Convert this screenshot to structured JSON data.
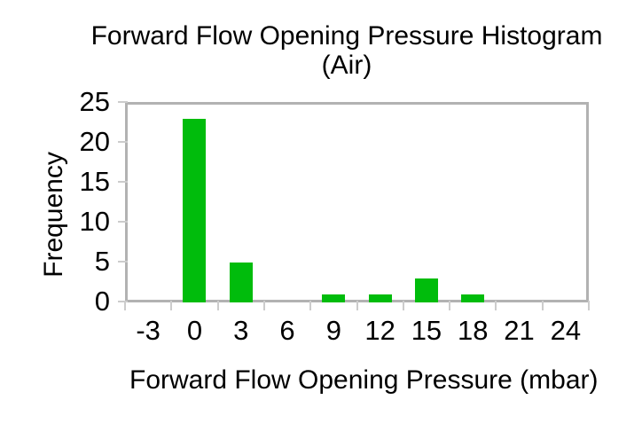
{
  "chart_data": {
    "type": "bar",
    "title": "Forward Flow Opening Pressure Histogram",
    "subtitle": "(Air)",
    "xlabel": "Forward Flow Opening Pressure (mbar)",
    "ylabel": "Frequency",
    "categories": [
      "-3",
      "0",
      "3",
      "6",
      "9",
      "12",
      "15",
      "18",
      "21",
      "24"
    ],
    "values": [
      0,
      23,
      5,
      0,
      1,
      1,
      3,
      1,
      0,
      0
    ],
    "yticks": [
      0,
      5,
      10,
      15,
      20,
      25
    ],
    "ylim": [
      0,
      25
    ],
    "grid": false,
    "legend": "none",
    "bar_color": "#00bc0c",
    "frame_color": "#b2b2b2",
    "tick_color": "#cccccc",
    "text_color": "#000000",
    "background_color": "#ffffff"
  }
}
